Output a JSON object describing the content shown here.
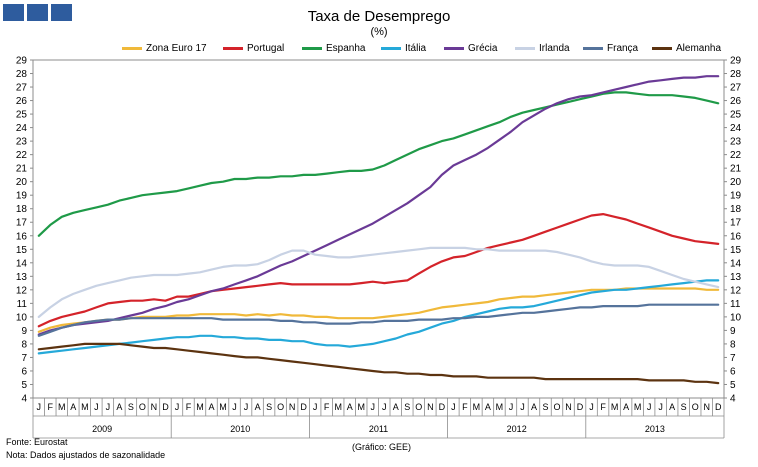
{
  "header": {
    "title": "Taxa de Desemprego",
    "subtitle": "(%)"
  },
  "footer": {
    "source": "Fonte: Eurostat",
    "note": "Nota: Dados ajustados de sazonalidade",
    "credit": "(Gráfico: GEE)"
  },
  "chart_data": {
    "type": "line",
    "title": "Taxa de Desemprego",
    "subtitle": "(%)",
    "xlabel": "",
    "ylabel": "",
    "ylim": [
      4,
      29
    ],
    "yticks": [
      4,
      5,
      6,
      7,
      8,
      9,
      10,
      11,
      12,
      13,
      14,
      15,
      16,
      17,
      18,
      19,
      20,
      21,
      22,
      23,
      24,
      25,
      26,
      27,
      28,
      29
    ],
    "grid": false,
    "legend_position": "top",
    "month_labels": [
      "J",
      "F",
      "M",
      "A",
      "M",
      "J",
      "J",
      "A",
      "S",
      "O",
      "N",
      "D"
    ],
    "years": [
      "2009",
      "2010",
      "2011",
      "2012",
      "2013"
    ],
    "series": [
      {
        "name": "Zona Euro 17",
        "color": "#f0b93a",
        "values": [
          8.9,
          9.2,
          9.4,
          9.5,
          9.6,
          9.7,
          9.8,
          9.8,
          9.9,
          10.0,
          10.0,
          10.0,
          10.1,
          10.1,
          10.2,
          10.2,
          10.2,
          10.2,
          10.1,
          10.2,
          10.1,
          10.2,
          10.1,
          10.1,
          10.0,
          10.0,
          9.9,
          9.9,
          9.9,
          9.9,
          10.0,
          10.1,
          10.2,
          10.3,
          10.5,
          10.7,
          10.8,
          10.9,
          11.0,
          11.1,
          11.3,
          11.4,
          11.5,
          11.5,
          11.6,
          11.7,
          11.8,
          11.9,
          12.0,
          12.0,
          12.0,
          12.1,
          12.1,
          12.1,
          12.1,
          12.1,
          12.1,
          12.1,
          12.0,
          12.0
        ]
      },
      {
        "name": "Portugal",
        "color": "#d4232a",
        "values": [
          9.3,
          9.7,
          10.0,
          10.2,
          10.4,
          10.7,
          11.0,
          11.1,
          11.2,
          11.2,
          11.3,
          11.2,
          11.5,
          11.5,
          11.7,
          11.9,
          12.0,
          12.1,
          12.2,
          12.3,
          12.4,
          12.5,
          12.4,
          12.4,
          12.4,
          12.4,
          12.4,
          12.4,
          12.5,
          12.6,
          12.5,
          12.6,
          12.7,
          13.2,
          13.7,
          14.1,
          14.4,
          14.5,
          14.8,
          15.1,
          15.3,
          15.5,
          15.7,
          16.0,
          16.3,
          16.6,
          16.9,
          17.2,
          17.5,
          17.6,
          17.4,
          17.2,
          16.9,
          16.6,
          16.3,
          16.0,
          15.8,
          15.6,
          15.5,
          15.4
        ]
      },
      {
        "name": "Espanha",
        "color": "#1f9a48",
        "values": [
          16.0,
          16.8,
          17.4,
          17.7,
          17.9,
          18.1,
          18.3,
          18.6,
          18.8,
          19.0,
          19.1,
          19.2,
          19.3,
          19.5,
          19.7,
          19.9,
          20.0,
          20.2,
          20.2,
          20.3,
          20.3,
          20.4,
          20.4,
          20.5,
          20.5,
          20.6,
          20.7,
          20.8,
          20.8,
          20.9,
          21.2,
          21.6,
          22.0,
          22.4,
          22.7,
          23.0,
          23.2,
          23.5,
          23.8,
          24.1,
          24.4,
          24.8,
          25.1,
          25.3,
          25.5,
          25.7,
          25.9,
          26.1,
          26.3,
          26.5,
          26.6,
          26.6,
          26.5,
          26.4,
          26.4,
          26.4,
          26.3,
          26.2,
          26.0,
          25.8
        ]
      },
      {
        "name": "Itália",
        "color": "#25a9d9",
        "values": [
          7.3,
          7.4,
          7.5,
          7.6,
          7.7,
          7.8,
          7.9,
          8.0,
          8.1,
          8.2,
          8.3,
          8.4,
          8.5,
          8.5,
          8.6,
          8.6,
          8.5,
          8.5,
          8.4,
          8.4,
          8.3,
          8.3,
          8.2,
          8.2,
          8.0,
          7.9,
          7.9,
          7.8,
          7.9,
          8.0,
          8.2,
          8.4,
          8.7,
          8.9,
          9.2,
          9.5,
          9.7,
          10.0,
          10.2,
          10.4,
          10.6,
          10.7,
          10.7,
          10.8,
          11.0,
          11.2,
          11.4,
          11.6,
          11.8,
          11.9,
          12.0,
          12.0,
          12.1,
          12.2,
          12.3,
          12.4,
          12.5,
          12.6,
          12.7,
          12.7
        ]
      },
      {
        "name": "Grécia",
        "color": "#6a3a96",
        "values": [
          8.7,
          9.0,
          9.2,
          9.4,
          9.5,
          9.6,
          9.7,
          9.9,
          10.1,
          10.3,
          10.6,
          10.8,
          11.1,
          11.3,
          11.6,
          11.9,
          12.1,
          12.4,
          12.7,
          13.0,
          13.4,
          13.8,
          14.1,
          14.5,
          14.9,
          15.3,
          15.7,
          16.1,
          16.5,
          16.9,
          17.4,
          17.9,
          18.4,
          19.0,
          19.6,
          20.5,
          21.2,
          21.6,
          22.0,
          22.5,
          23.1,
          23.7,
          24.4,
          24.9,
          25.4,
          25.8,
          26.1,
          26.3,
          26.4,
          26.6,
          26.8,
          27.0,
          27.2,
          27.4,
          27.5,
          27.6,
          27.7,
          27.7,
          27.8,
          27.8
        ]
      },
      {
        "name": "Irlanda",
        "color": "#c8d2e4",
        "values": [
          10.0,
          10.7,
          11.3,
          11.7,
          12.0,
          12.3,
          12.5,
          12.7,
          12.9,
          13.0,
          13.1,
          13.1,
          13.1,
          13.2,
          13.3,
          13.5,
          13.7,
          13.8,
          13.8,
          13.9,
          14.2,
          14.6,
          14.9,
          14.9,
          14.6,
          14.5,
          14.4,
          14.4,
          14.5,
          14.6,
          14.7,
          14.8,
          14.9,
          15.0,
          15.1,
          15.1,
          15.1,
          15.1,
          15.0,
          15.0,
          14.9,
          14.9,
          14.9,
          14.9,
          14.9,
          14.8,
          14.6,
          14.4,
          14.1,
          13.9,
          13.8,
          13.8,
          13.8,
          13.7,
          13.4,
          13.1,
          12.8,
          12.6,
          12.4,
          12.2
        ]
      },
      {
        "name": "França",
        "color": "#55739b",
        "values": [
          8.6,
          8.9,
          9.2,
          9.4,
          9.6,
          9.7,
          9.8,
          9.8,
          9.9,
          9.9,
          9.9,
          9.9,
          9.9,
          9.9,
          9.9,
          9.9,
          9.8,
          9.8,
          9.8,
          9.8,
          9.8,
          9.7,
          9.7,
          9.6,
          9.6,
          9.5,
          9.5,
          9.5,
          9.6,
          9.6,
          9.7,
          9.7,
          9.7,
          9.8,
          9.8,
          9.8,
          9.9,
          9.9,
          10.0,
          10.0,
          10.1,
          10.2,
          10.3,
          10.3,
          10.4,
          10.5,
          10.6,
          10.7,
          10.7,
          10.8,
          10.8,
          10.8,
          10.8,
          10.9,
          10.9,
          10.9,
          10.9,
          10.9,
          10.9,
          10.9
        ]
      },
      {
        "name": "Alemanha",
        "color": "#5c3310",
        "values": [
          7.6,
          7.7,
          7.8,
          7.9,
          8.0,
          8.0,
          8.0,
          8.0,
          7.9,
          7.8,
          7.7,
          7.7,
          7.6,
          7.5,
          7.4,
          7.3,
          7.2,
          7.1,
          7.0,
          7.0,
          6.9,
          6.8,
          6.7,
          6.6,
          6.5,
          6.4,
          6.3,
          6.2,
          6.1,
          6.0,
          5.9,
          5.9,
          5.8,
          5.8,
          5.7,
          5.7,
          5.6,
          5.6,
          5.6,
          5.5,
          5.5,
          5.5,
          5.5,
          5.5,
          5.4,
          5.4,
          5.4,
          5.4,
          5.4,
          5.4,
          5.4,
          5.4,
          5.4,
          5.3,
          5.3,
          5.3,
          5.3,
          5.2,
          5.2,
          5.1
        ]
      }
    ]
  }
}
